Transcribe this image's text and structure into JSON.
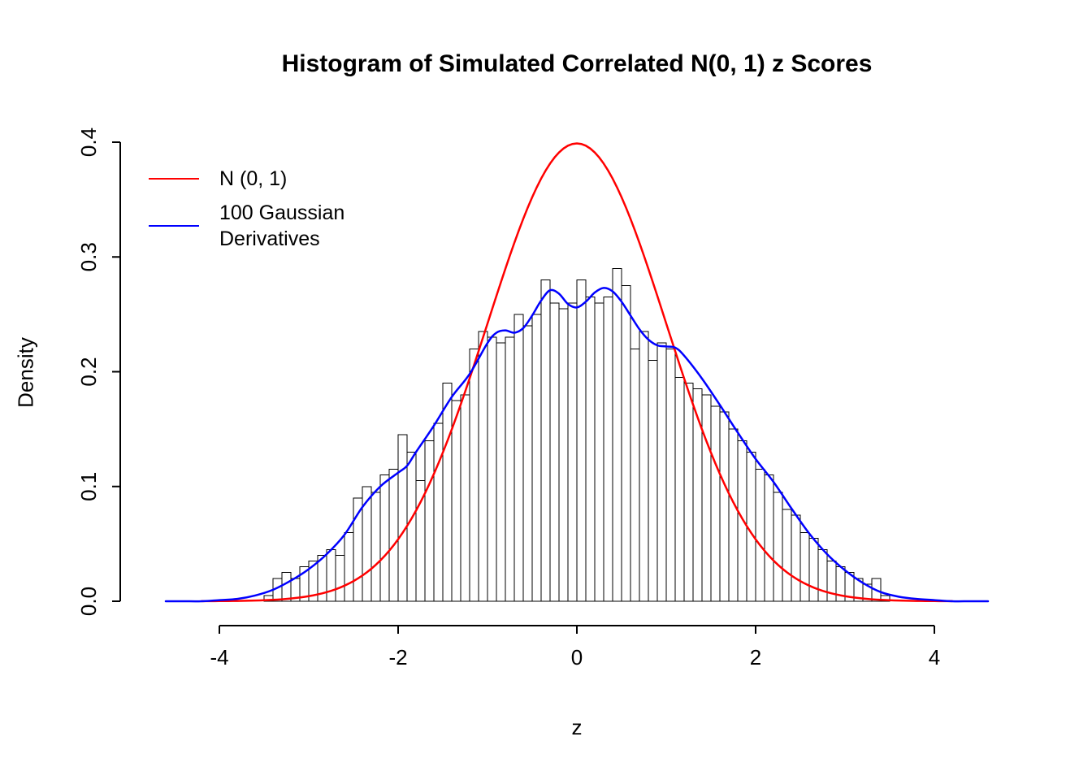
{
  "chart_data": {
    "type": "bar",
    "subtype": "histogram-with-density-curves",
    "title": "Histogram of Simulated Correlated N(0, 1) z Scores",
    "xlabel": "z",
    "ylabel": "Density",
    "xlim": [
      -4.6,
      4.6
    ],
    "ylim": [
      0,
      0.4
    ],
    "x_ticks": [
      -4,
      -2,
      0,
      2,
      4
    ],
    "y_ticks": [
      0.0,
      0.1,
      0.2,
      0.3,
      0.4
    ],
    "grid": "off",
    "legend_position": "top-left-inside",
    "histogram": {
      "bar_fill": "#ffffff",
      "bar_stroke": "#000000",
      "bin_start": -3.5,
      "bin_width": 0.1,
      "heights": [
        0.005,
        0.02,
        0.025,
        0.02,
        0.03,
        0.035,
        0.04,
        0.045,
        0.04,
        0.06,
        0.09,
        0.1,
        0.095,
        0.11,
        0.115,
        0.145,
        0.13,
        0.105,
        0.14,
        0.155,
        0.19,
        0.175,
        0.18,
        0.22,
        0.235,
        0.23,
        0.225,
        0.23,
        0.25,
        0.24,
        0.25,
        0.28,
        0.26,
        0.255,
        0.26,
        0.28,
        0.265,
        0.26,
        0.265,
        0.29,
        0.275,
        0.22,
        0.235,
        0.21,
        0.225,
        0.22,
        0.195,
        0.19,
        0.185,
        0.18,
        0.17,
        0.165,
        0.15,
        0.14,
        0.13,
        0.115,
        0.11,
        0.095,
        0.08,
        0.075,
        0.06,
        0.055,
        0.045,
        0.035,
        0.03,
        0.025,
        0.02,
        0.015,
        0.02,
        0.005
      ]
    },
    "normal_curve": {
      "name": "N (0, 1)",
      "color": "#FF0000",
      "mean": 0,
      "sd": 1,
      "peak_density": 0.3989,
      "x_range": [
        -4.2,
        4.2
      ]
    },
    "density_curve": {
      "name": "100 Gaussian Derivatives",
      "color": "#0000FF",
      "points": [
        [
          -4.6,
          0
        ],
        [
          -4.4,
          0
        ],
        [
          -4.2,
          0
        ],
        [
          -4.0,
          0.001
        ],
        [
          -3.8,
          0.002
        ],
        [
          -3.6,
          0.005
        ],
        [
          -3.4,
          0.01
        ],
        [
          -3.2,
          0.018
        ],
        [
          -3.0,
          0.028
        ],
        [
          -2.8,
          0.041
        ],
        [
          -2.6,
          0.058
        ],
        [
          -2.4,
          0.082
        ],
        [
          -2.2,
          0.1
        ],
        [
          -2.0,
          0.112
        ],
        [
          -1.9,
          0.118
        ],
        [
          -1.8,
          0.13
        ],
        [
          -1.6,
          0.153
        ],
        [
          -1.4,
          0.178
        ],
        [
          -1.2,
          0.198
        ],
        [
          -1.0,
          0.225
        ],
        [
          -0.9,
          0.234
        ],
        [
          -0.8,
          0.236
        ],
        [
          -0.7,
          0.234
        ],
        [
          -0.6,
          0.238
        ],
        [
          -0.5,
          0.249
        ],
        [
          -0.4,
          0.262
        ],
        [
          -0.3,
          0.271
        ],
        [
          -0.2,
          0.268
        ],
        [
          -0.1,
          0.259
        ],
        [
          0.0,
          0.256
        ],
        [
          0.1,
          0.261
        ],
        [
          0.2,
          0.269
        ],
        [
          0.3,
          0.273
        ],
        [
          0.4,
          0.27
        ],
        [
          0.5,
          0.261
        ],
        [
          0.6,
          0.249
        ],
        [
          0.7,
          0.237
        ],
        [
          0.8,
          0.228
        ],
        [
          0.9,
          0.223
        ],
        [
          1.0,
          0.222
        ],
        [
          1.1,
          0.221
        ],
        [
          1.2,
          0.214
        ],
        [
          1.4,
          0.194
        ],
        [
          1.6,
          0.171
        ],
        [
          1.8,
          0.147
        ],
        [
          2.0,
          0.124
        ],
        [
          2.2,
          0.104
        ],
        [
          2.4,
          0.081
        ],
        [
          2.6,
          0.059
        ],
        [
          2.8,
          0.041
        ],
        [
          3.0,
          0.027
        ],
        [
          3.2,
          0.016
        ],
        [
          3.4,
          0.008
        ],
        [
          3.6,
          0.004
        ],
        [
          3.8,
          0.002
        ],
        [
          4.0,
          0.001
        ],
        [
          4.2,
          0
        ],
        [
          4.4,
          0
        ],
        [
          4.6,
          0
        ]
      ]
    },
    "legend": {
      "entries": [
        {
          "color": "#FF0000",
          "lines": [
            "N (0, 1)"
          ]
        },
        {
          "color": "#0000FF",
          "lines": [
            "100 Gaussian",
            "Derivatives"
          ]
        }
      ]
    }
  }
}
